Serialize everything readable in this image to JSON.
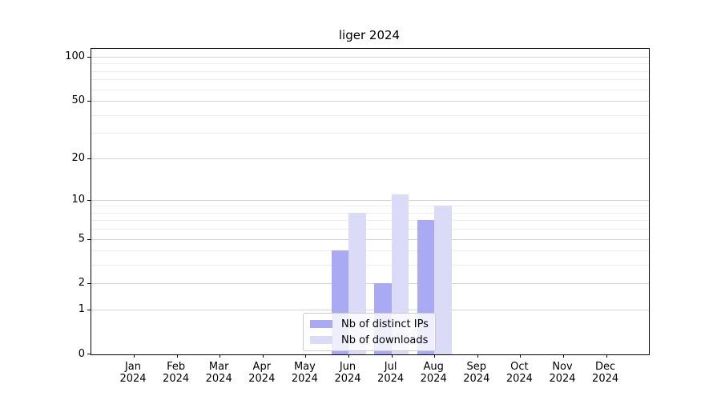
{
  "chart_data": {
    "type": "bar",
    "title": "liger 2024",
    "categories": [
      "Jan 2024",
      "Feb 2024",
      "Mar 2024",
      "Apr 2024",
      "May 2024",
      "Jun 2024",
      "Jul 2024",
      "Aug 2024",
      "Sep 2024",
      "Oct 2024",
      "Nov 2024",
      "Dec 2024"
    ],
    "series": [
      {
        "name": "Nb of distinct IPs",
        "color": "#a9a9f4",
        "values": [
          0,
          0,
          0,
          0,
          0,
          4,
          2,
          7,
          0,
          0,
          0,
          0
        ]
      },
      {
        "name": "Nb of downloads",
        "color": "#dbdbf8",
        "values": [
          0,
          0,
          0,
          0,
          0,
          8,
          11,
          9,
          0,
          0,
          0,
          0
        ]
      }
    ],
    "y_scale": "log1p",
    "y_ticks_major": [
      0,
      1,
      2,
      5,
      10,
      20,
      50,
      100
    ],
    "y_ticks_minor": [
      3,
      4,
      6,
      7,
      8,
      9,
      30,
      40,
      60,
      70,
      80,
      90
    ],
    "ylim": [
      0,
      115
    ],
    "grid": "horizontal-only",
    "legend_position": "lower-center"
  },
  "colors": {
    "background": "#ffffff",
    "spine": "#000000",
    "grid_major": "#d4d4d4",
    "grid_minor": "#ededed",
    "legend_border": "#cccccc",
    "text": "#000000"
  }
}
